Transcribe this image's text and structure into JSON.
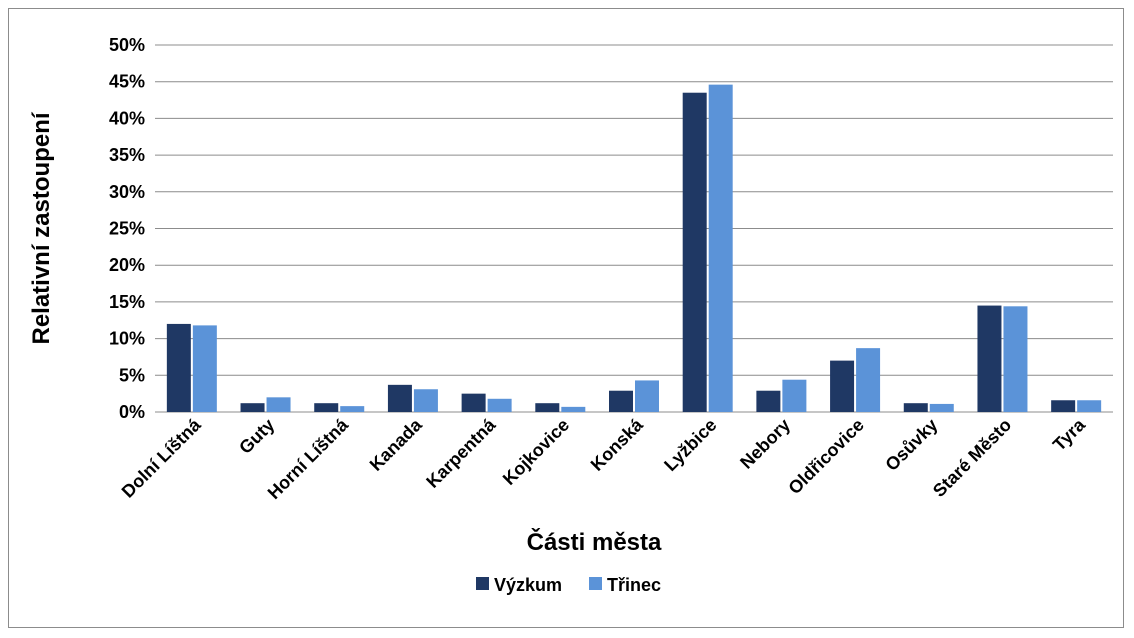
{
  "chart_data": {
    "type": "bar",
    "title": "",
    "xlabel": "Části města",
    "ylabel": "Relativní zastoupení",
    "ylim": [
      0,
      50
    ],
    "y_ticks": [
      "0%",
      "5%",
      "10%",
      "15%",
      "20%",
      "25%",
      "30%",
      "35%",
      "40%",
      "45%",
      "50%"
    ],
    "y_tick_values": [
      0,
      5,
      10,
      15,
      20,
      25,
      30,
      35,
      40,
      45,
      50
    ],
    "grid": true,
    "legend_position": "bottom",
    "categories": [
      "Dolní Líštná",
      "Guty",
      "Horní Líštná",
      "Kanada",
      "Karpentná",
      "Kojkovice",
      "Konská",
      "Lyžbice",
      "Nebory",
      "Oldřicovice",
      "Osůvky",
      "Staré Město",
      "Tyra"
    ],
    "series": [
      {
        "name": "Výzkum",
        "color": "#1f3864",
        "values": [
          12.0,
          1.2,
          1.2,
          3.7,
          2.5,
          1.2,
          2.9,
          43.5,
          2.9,
          7.0,
          1.2,
          14.5,
          1.6
        ]
      },
      {
        "name": "Třinec",
        "color": "#5b93d8",
        "values": [
          11.8,
          2.0,
          0.8,
          3.1,
          1.8,
          0.7,
          4.3,
          44.6,
          4.4,
          8.7,
          1.1,
          14.4,
          1.6
        ]
      }
    ]
  }
}
